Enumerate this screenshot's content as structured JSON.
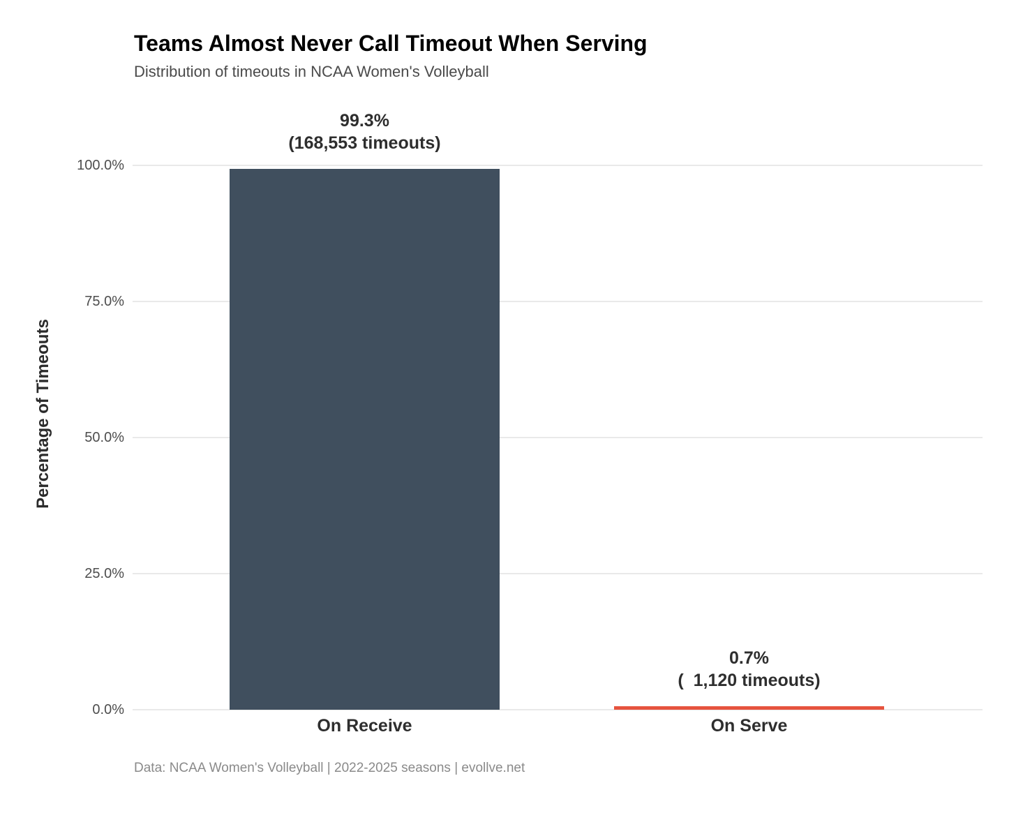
{
  "header": {
    "title": "Teams Almost Never Call Timeout When Serving",
    "subtitle": "Distribution of timeouts in NCAA Women's Volleyball"
  },
  "footer": {
    "caption": "Data: NCAA Women's Volleyball | 2022-2025 seasons | evollve.net"
  },
  "colors": {
    "background": "#ffffff",
    "gridline": "#e9e9e9",
    "bar_on_receive": "#404f5e",
    "bar_on_serve": "#e6533e",
    "title_text": "#000000",
    "subtitle_text": "#4a4a4a",
    "tick_text": "#4d4d4d",
    "caption_text": "#8a8a8a"
  },
  "chart_data": {
    "type": "bar",
    "title": "Teams Almost Never Call Timeout When Serving",
    "subtitle": "Distribution of timeouts in NCAA Women's Volleyball",
    "categories": [
      "On Receive",
      "On Serve"
    ],
    "values": [
      99.3,
      0.7
    ],
    "timeout_counts": [
      168553,
      1120
    ],
    "bar_labels": [
      {
        "percent": "99.3%",
        "count": "(168,553 timeouts)"
      },
      {
        "percent": "0.7%",
        "count": "(  1,120 timeouts)"
      }
    ],
    "series_colors": [
      "#404f5e",
      "#e6533e"
    ],
    "xlabel": "",
    "ylabel": "Percentage of Timeouts",
    "ylim": [
      0,
      100
    ],
    "yticks": [
      {
        "value": 0,
        "label": "0.0%"
      },
      {
        "value": 25,
        "label": "25.0%"
      },
      {
        "value": 50,
        "label": "50.0%"
      },
      {
        "value": 75,
        "label": "75.0%"
      },
      {
        "value": 100,
        "label": "100.0%"
      }
    ],
    "grid": "horizontal-major-only",
    "legend": "none",
    "caption": "Data: NCAA Women's Volleyball | 2022-2025 seasons | evollve.net"
  }
}
